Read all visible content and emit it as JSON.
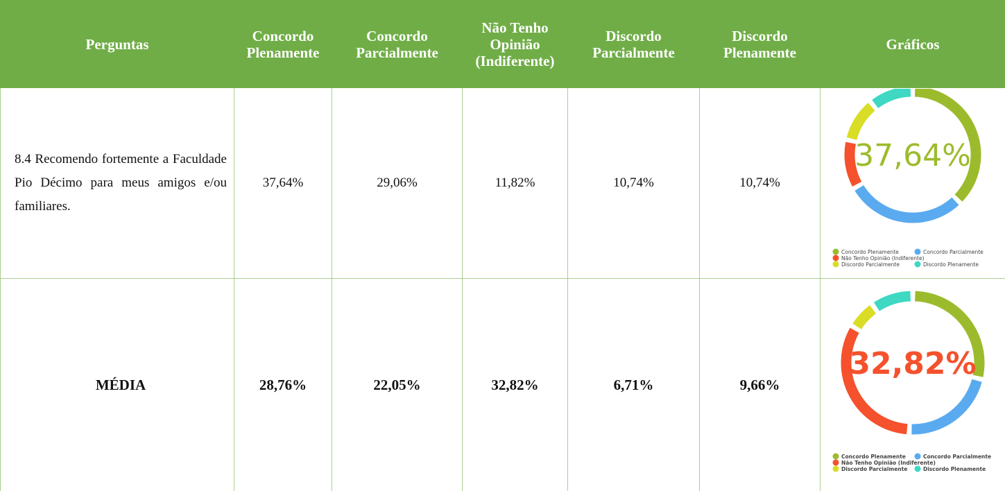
{
  "table": {
    "headers": [
      "Perguntas",
      "Concordo Plenamente",
      "Concordo Parcialmente",
      "Não Tenho Opinião (Indiferente)",
      "Discordo Parcialmente",
      "Discordo Plenamente",
      "Gráficos"
    ],
    "colors": [
      "#9cbb2c",
      "#5aaaf0",
      "#f4512c",
      "#d9dd25",
      "#3ed8c3"
    ],
    "rows": [
      {
        "label": "8.4 Recomendo fortemente a Faculdade Pio Décimo para meus amigos e/ou familiares.",
        "values": [
          37.64,
          29.06,
          11.82,
          10.74,
          10.74
        ],
        "value_labels": [
          "37,64%",
          "29,06%",
          "11,82%",
          "10,74%",
          "10,74%"
        ]
      },
      {
        "label": "MÉDIA",
        "values": [
          28.76,
          22.05,
          32.82,
          6.71,
          9.66
        ],
        "value_labels": [
          "28,76%",
          "22,05%",
          "32,82%",
          "6,71%",
          "9,66%"
        ]
      }
    ]
  }
}
